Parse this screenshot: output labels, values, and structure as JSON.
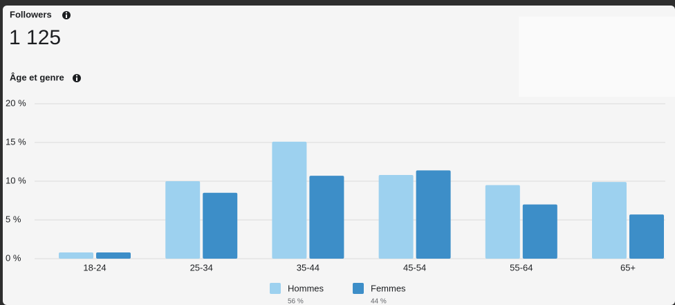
{
  "header": {
    "title": "Followers",
    "count": "1 125",
    "subtitle": "Âge et genre"
  },
  "chart_data": {
    "type": "bar",
    "categories": [
      "18-24",
      "25-34",
      "35-44",
      "45-54",
      "55-64",
      "65+"
    ],
    "series": [
      {
        "name": "Hommes",
        "color": "#9dd1ef",
        "values": [
          0.8,
          10,
          15.1,
          10.8,
          9.5,
          9.9
        ],
        "share_label": "56 %"
      },
      {
        "name": "Femmes",
        "color": "#3d8ec8",
        "values": [
          0.8,
          8.5,
          10.7,
          11.4,
          7,
          5.7
        ],
        "share_label": "44 %"
      }
    ],
    "ylim": [
      0,
      20
    ],
    "yticks": [
      {
        "value": 0,
        "label": "0 %"
      },
      {
        "value": 5,
        "label": "5 %"
      },
      {
        "value": 10,
        "label": "10 %"
      },
      {
        "value": 15,
        "label": "15 %"
      },
      {
        "value": 20,
        "label": "20 %"
      }
    ],
    "grid": true
  }
}
